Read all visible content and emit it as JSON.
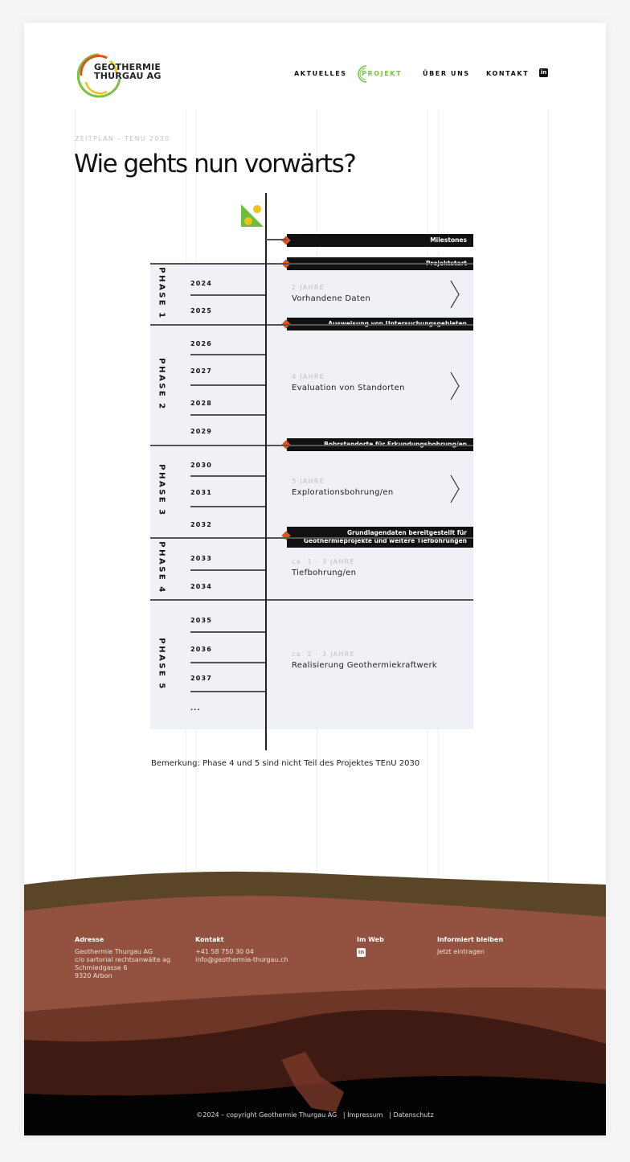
{
  "header": {
    "logo_line1": "GEOTHERMIE",
    "logo_line2": "THURGAU AG",
    "nav": [
      "AKTUELLES",
      "PROJEKT",
      "ÜBER UNS",
      "KONTAKT"
    ],
    "active_nav": "PROJEKT",
    "accent": "#7cc242",
    "linkedin_icon": "linkedin-icon"
  },
  "page": {
    "eyebrow": "ZEITPLAN – TENU 2030",
    "title": "Wie gehts nun vorwärts?",
    "note": "Bemerkung: Phase 4 und 5 sind nicht Teil des Projektes TEnU 2030"
  },
  "timeline": {
    "milestones": [
      "Milestones",
      "Projektstart",
      "Ausweisung von Untersuchungsgebieten",
      "Bohrstandorte für Erkundungsbohrung/en",
      "Grundlagendaten bereitgestellt für Geothermieprojekte und weitere Tiefbohrungen"
    ],
    "phases": [
      {
        "label": "PHASE 1",
        "years": [
          "2024",
          "2025"
        ],
        "duration": "2 JAHRE",
        "activity": "Vorhandene Daten",
        "expandable": true
      },
      {
        "label": "PHASE 2",
        "years": [
          "2026",
          "2027",
          "2028",
          "2029"
        ],
        "duration": "4 JAHRE",
        "activity": "Evaluation von Standorten",
        "expandable": true
      },
      {
        "label": "PHASE 3",
        "years": [
          "2030",
          "2031",
          "2032"
        ],
        "duration": "3 JAHRE",
        "activity": "Explorationsbohrung/en",
        "expandable": true
      },
      {
        "label": "PHASE 4",
        "years": [
          "2033",
          "2034"
        ],
        "duration": "ca. 1 - 3 JAHRE",
        "activity": "Tiefbohrung/en",
        "expandable": false
      },
      {
        "label": "PHASE 5",
        "years": [
          "2035",
          "2036",
          "2037",
          "..."
        ],
        "duration": "ca. 2 - 3 JAHRE",
        "activity": "Realisierung Geothermiekraftwerk",
        "expandable": false
      }
    ],
    "milestone_color": "#e0531b"
  },
  "footer": {
    "columns": [
      {
        "title": "Adresse",
        "text": "Geothermie Thurgau AG\nc/o sartorial rechtsanwälte ag\nSchmiedgasse 6\n9320 Arbon"
      },
      {
        "title": "Kontakt",
        "text": "+41 58 750 30 04\ninfo@geothermie-thurgau.ch"
      },
      {
        "title": "Im Web",
        "text": ""
      },
      {
        "title": "Informiert bleiben",
        "text": "Jetzt eintragen"
      }
    ],
    "copyright": "©2024 – copyright Geothermie Thurgau AG",
    "links": [
      "| Impressum",
      "| Datenschutz"
    ]
  }
}
